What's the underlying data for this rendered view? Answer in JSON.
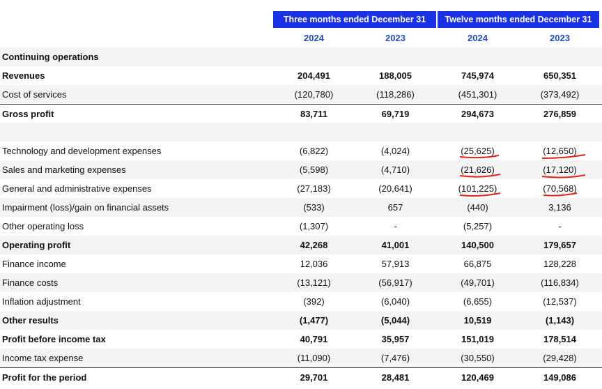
{
  "header": {
    "group_three_months": "Three months ended December 31",
    "group_twelve_months": "Twelve months ended December 31",
    "years": [
      "2024",
      "2023",
      "2024",
      "2023"
    ]
  },
  "rows": [
    {
      "label": "Continuing operations",
      "values": [
        "",
        "",
        "",
        ""
      ],
      "bold": true
    },
    {
      "label": "Revenues",
      "values": [
        "204,491",
        "188,005",
        "745,974",
        "650,351"
      ],
      "bold": true
    },
    {
      "label": "Cost of services",
      "values": [
        "(120,780)",
        "(118,286)",
        "(451,301)",
        "(373,492)"
      ]
    },
    {
      "label": "Gross profit",
      "values": [
        "83,711",
        "69,719",
        "294,673",
        "276,859"
      ],
      "bold": true
    },
    {
      "label": "",
      "values": [
        "",
        "",
        "",
        ""
      ]
    },
    {
      "label": "Technology and development expenses",
      "values": [
        "(6,822)",
        "(4,024)",
        "(25,625)",
        "(12,650)"
      ]
    },
    {
      "label": "Sales and marketing expenses",
      "values": [
        "(5,598)",
        "(4,710)",
        "(21,626)",
        "(17,120)"
      ]
    },
    {
      "label": "General and administrative expenses",
      "values": [
        "(27,183)",
        "(20,641)",
        "(101,225)",
        "(70,568)"
      ]
    },
    {
      "label": "Impairment (loss)/gain on financial assets",
      "values": [
        "(533)",
        "657",
        "(440)",
        "3,136"
      ]
    },
    {
      "label": "Other operating loss",
      "values": [
        "(1,307)",
        "-",
        "(5,257)",
        "-"
      ]
    },
    {
      "label": "Operating profit",
      "values": [
        "42,268",
        "41,001",
        "140,500",
        "179,657"
      ],
      "bold": true
    },
    {
      "label": "Finance income",
      "values": [
        "12,036",
        "57,913",
        "66,875",
        "128,228"
      ]
    },
    {
      "label": "Finance costs",
      "values": [
        "(13,121)",
        "(56,917)",
        "(49,701)",
        "(116,834)"
      ]
    },
    {
      "label": "Inflation adjustment",
      "values": [
        "(392)",
        "(6,040)",
        "(6,655)",
        "(12,537)"
      ]
    },
    {
      "label": "Other results",
      "values": [
        "(1,477)",
        "(5,044)",
        "10,519",
        "(1,143)"
      ],
      "bold": true
    },
    {
      "label": "Profit before income tax",
      "values": [
        "40,791",
        "35,957",
        "151,019",
        "178,514"
      ],
      "bold": true
    },
    {
      "label": "Income tax expense",
      "values": [
        "(11,090)",
        "(7,476)",
        "(30,550)",
        "(29,428)"
      ]
    },
    {
      "label": "Profit for the period",
      "values": [
        "29,701",
        "28,481",
        "120,469",
        "149,086"
      ],
      "bold": true
    }
  ],
  "colors": {
    "header_bg": "#1a33e6",
    "year_text": "#2449c9",
    "handwritten_mark": "#e0241b"
  }
}
